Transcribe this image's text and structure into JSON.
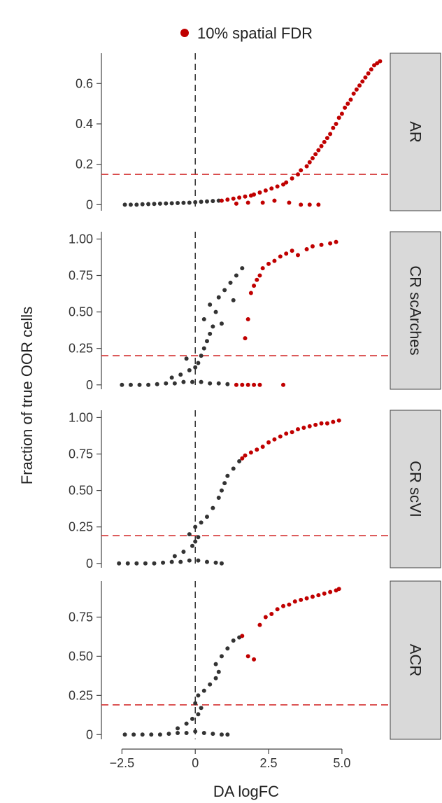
{
  "colors": {
    "significant": "#c00000",
    "nonsignificant": "#333333",
    "fdr_line": "#d32f2f",
    "strip_fill": "#d9d9d9"
  },
  "legend": {
    "label": "10% spatial FDR"
  },
  "chart_data": {
    "type": "scatter",
    "xlabel": "DA logFC",
    "ylabel": "Fraction of true OOR cells",
    "xlim": [
      -3.2,
      6.6
    ],
    "x_ticks": [
      -2.5,
      0,
      2.5,
      5.0
    ],
    "x_tick_labels": [
      "−2.5",
      "0",
      "2.5",
      "5.0"
    ],
    "panels": [
      {
        "strip": "AR",
        "ylim": [
          -0.03,
          0.75
        ],
        "y_ticks": [
          0,
          0.2,
          0.4,
          0.6
        ],
        "y_tick_labels": [
          "0",
          "0.2",
          "0.4",
          "0.6"
        ],
        "threshold": 0.15,
        "points": [
          [
            -2.4,
            0,
            0
          ],
          [
            -2.2,
            0,
            0
          ],
          [
            -2.0,
            0,
            0
          ],
          [
            -1.8,
            0.002,
            0
          ],
          [
            -1.6,
            0.003,
            0
          ],
          [
            -1.4,
            0.004,
            0
          ],
          [
            -1.2,
            0.005,
            0
          ],
          [
            -1.0,
            0.006,
            0
          ],
          [
            -0.8,
            0.007,
            0
          ],
          [
            -0.6,
            0.008,
            0
          ],
          [
            -0.4,
            0.009,
            0
          ],
          [
            -0.2,
            0.01,
            0
          ],
          [
            0.0,
            0.012,
            0
          ],
          [
            0.2,
            0.014,
            0
          ],
          [
            0.4,
            0.016,
            0
          ],
          [
            0.6,
            0.018,
            0
          ],
          [
            0.8,
            0.02,
            0
          ],
          [
            0.9,
            0.02,
            1
          ],
          [
            1.1,
            0.025,
            1
          ],
          [
            1.3,
            0.03,
            1
          ],
          [
            1.5,
            0.035,
            1
          ],
          [
            1.7,
            0.04,
            1
          ],
          [
            1.9,
            0.045,
            1
          ],
          [
            2.0,
            0.05,
            1
          ],
          [
            2.2,
            0.06,
            1
          ],
          [
            2.4,
            0.07,
            1
          ],
          [
            2.6,
            0.08,
            1
          ],
          [
            2.8,
            0.09,
            1
          ],
          [
            3.0,
            0.1,
            1
          ],
          [
            1.4,
            0.005,
            1
          ],
          [
            1.8,
            0.01,
            1
          ],
          [
            2.3,
            0.01,
            1
          ],
          [
            2.7,
            0.02,
            1
          ],
          [
            3.2,
            0.01,
            1
          ],
          [
            3.6,
            0.0,
            1
          ],
          [
            3.9,
            0.0,
            1
          ],
          [
            4.2,
            0.0,
            1
          ],
          [
            3.1,
            0.11,
            1
          ],
          [
            3.3,
            0.13,
            1
          ],
          [
            3.5,
            0.15,
            1
          ],
          [
            3.6,
            0.17,
            1
          ],
          [
            3.8,
            0.19,
            1
          ],
          [
            3.9,
            0.21,
            1
          ],
          [
            4.0,
            0.23,
            1
          ],
          [
            4.1,
            0.25,
            1
          ],
          [
            4.2,
            0.27,
            1
          ],
          [
            4.3,
            0.29,
            1
          ],
          [
            4.4,
            0.31,
            1
          ],
          [
            4.5,
            0.33,
            1
          ],
          [
            4.6,
            0.35,
            1
          ],
          [
            4.7,
            0.38,
            1
          ],
          [
            4.8,
            0.4,
            1
          ],
          [
            4.9,
            0.43,
            1
          ],
          [
            5.0,
            0.45,
            1
          ],
          [
            5.1,
            0.48,
            1
          ],
          [
            5.2,
            0.5,
            1
          ],
          [
            5.3,
            0.52,
            1
          ],
          [
            5.4,
            0.55,
            1
          ],
          [
            5.5,
            0.57,
            1
          ],
          [
            5.6,
            0.59,
            1
          ],
          [
            5.7,
            0.61,
            1
          ],
          [
            5.8,
            0.63,
            1
          ],
          [
            5.9,
            0.65,
            1
          ],
          [
            6.0,
            0.67,
            1
          ],
          [
            6.1,
            0.69,
            1
          ],
          [
            6.2,
            0.7,
            1
          ],
          [
            6.3,
            0.71,
            1
          ]
        ]
      },
      {
        "strip": "CR scArches",
        "ylim": [
          -0.03,
          1.05
        ],
        "y_ticks": [
          0,
          0.25,
          0.5,
          0.75,
          1.0
        ],
        "y_tick_labels": [
          "0",
          "0.25",
          "0.50",
          "0.75",
          "1.00"
        ],
        "threshold": 0.2,
        "points": [
          [
            -2.5,
            0,
            0
          ],
          [
            -2.2,
            0,
            0
          ],
          [
            -1.9,
            0,
            0
          ],
          [
            -1.6,
            0,
            0
          ],
          [
            -1.3,
            0.005,
            0
          ],
          [
            -1.0,
            0.01,
            0
          ],
          [
            -0.7,
            0.01,
            0
          ],
          [
            -0.4,
            0.02,
            0
          ],
          [
            -0.1,
            0.02,
            0
          ],
          [
            0.2,
            0.02,
            0
          ],
          [
            0.5,
            0.01,
            0
          ],
          [
            0.8,
            0.01,
            0
          ],
          [
            1.1,
            0.005,
            0
          ],
          [
            -0.8,
            0.05,
            0
          ],
          [
            -0.5,
            0.07,
            0
          ],
          [
            -0.2,
            0.1,
            0
          ],
          [
            0.0,
            0.12,
            0
          ],
          [
            0.1,
            0.15,
            0
          ],
          [
            0.2,
            0.2,
            0
          ],
          [
            0.3,
            0.25,
            0
          ],
          [
            -0.3,
            0.18,
            0
          ],
          [
            0.4,
            0.3,
            0
          ],
          [
            0.5,
            0.35,
            0
          ],
          [
            0.6,
            0.4,
            0
          ],
          [
            0.3,
            0.45,
            0
          ],
          [
            0.7,
            0.5,
            0
          ],
          [
            0.5,
            0.55,
            0
          ],
          [
            0.8,
            0.6,
            0
          ],
          [
            1.0,
            0.65,
            0
          ],
          [
            1.2,
            0.7,
            0
          ],
          [
            1.4,
            0.75,
            0
          ],
          [
            1.6,
            0.8,
            0
          ],
          [
            1.3,
            0.58,
            0
          ],
          [
            0.9,
            0.42,
            0
          ],
          [
            1.4,
            0.0,
            1
          ],
          [
            1.6,
            0.0,
            1
          ],
          [
            1.8,
            0.0,
            1
          ],
          [
            2.0,
            0.0,
            1
          ],
          [
            2.2,
            0.0,
            1
          ],
          [
            3.0,
            0.0,
            1
          ],
          [
            1.7,
            0.32,
            1
          ],
          [
            1.8,
            0.45,
            1
          ],
          [
            1.9,
            0.63,
            1
          ],
          [
            2.0,
            0.68,
            1
          ],
          [
            2.1,
            0.72,
            1
          ],
          [
            2.2,
            0.75,
            1
          ],
          [
            2.3,
            0.8,
            1
          ],
          [
            2.5,
            0.83,
            1
          ],
          [
            2.7,
            0.85,
            1
          ],
          [
            2.9,
            0.88,
            1
          ],
          [
            3.1,
            0.9,
            1
          ],
          [
            3.3,
            0.92,
            1
          ],
          [
            3.5,
            0.89,
            1
          ],
          [
            3.8,
            0.93,
            1
          ],
          [
            4.0,
            0.95,
            1
          ],
          [
            4.3,
            0.96,
            1
          ],
          [
            4.6,
            0.97,
            1
          ],
          [
            4.8,
            0.98,
            1
          ]
        ]
      },
      {
        "strip": "CR scVI",
        "ylim": [
          -0.03,
          1.05
        ],
        "y_ticks": [
          0,
          0.25,
          0.5,
          0.75,
          1.0
        ],
        "y_tick_labels": [
          "0",
          "0.25",
          "0.50",
          "0.75",
          "1.00"
        ],
        "threshold": 0.19,
        "points": [
          [
            -2.6,
            0,
            0
          ],
          [
            -2.3,
            0,
            0
          ],
          [
            -2.0,
            0,
            0
          ],
          [
            -1.7,
            0,
            0
          ],
          [
            -1.4,
            0,
            0
          ],
          [
            -1.1,
            0.005,
            0
          ],
          [
            -0.8,
            0.01,
            0
          ],
          [
            -0.5,
            0.01,
            0
          ],
          [
            -0.2,
            0.02,
            0
          ],
          [
            0.1,
            0.02,
            0
          ],
          [
            0.4,
            0.01,
            0
          ],
          [
            0.7,
            0.005,
            0
          ],
          [
            0.9,
            0.0,
            0
          ],
          [
            -0.7,
            0.05,
            0
          ],
          [
            -0.4,
            0.08,
            0
          ],
          [
            -0.1,
            0.12,
            0
          ],
          [
            0.0,
            0.15,
            0
          ],
          [
            0.1,
            0.18,
            0
          ],
          [
            -0.2,
            0.2,
            0
          ],
          [
            0.0,
            0.25,
            0
          ],
          [
            0.2,
            0.28,
            0
          ],
          [
            0.4,
            0.32,
            0
          ],
          [
            0.6,
            0.38,
            0
          ],
          [
            0.8,
            0.45,
            0
          ],
          [
            0.9,
            0.5,
            0
          ],
          [
            1.0,
            0.55,
            0
          ],
          [
            1.1,
            0.6,
            0
          ],
          [
            1.3,
            0.65,
            0
          ],
          [
            1.5,
            0.7,
            0
          ],
          [
            1.6,
            0.72,
            1
          ],
          [
            1.7,
            0.74,
            1
          ],
          [
            1.9,
            0.76,
            1
          ],
          [
            2.1,
            0.78,
            1
          ],
          [
            2.3,
            0.8,
            1
          ],
          [
            2.5,
            0.83,
            1
          ],
          [
            2.7,
            0.85,
            1
          ],
          [
            2.9,
            0.87,
            1
          ],
          [
            3.1,
            0.89,
            1
          ],
          [
            3.3,
            0.9,
            1
          ],
          [
            3.5,
            0.92,
            1
          ],
          [
            3.7,
            0.93,
            1
          ],
          [
            3.9,
            0.94,
            1
          ],
          [
            4.1,
            0.95,
            1
          ],
          [
            4.3,
            0.96,
            1
          ],
          [
            4.5,
            0.96,
            1
          ],
          [
            4.7,
            0.97,
            1
          ],
          [
            4.9,
            0.98,
            1
          ]
        ]
      },
      {
        "strip": "ACR",
        "ylim": [
          -0.03,
          0.98
        ],
        "y_ticks": [
          0,
          0.25,
          0.5,
          0.75
        ],
        "y_tick_labels": [
          "0",
          "0.25",
          "0.50",
          "0.75"
        ],
        "threshold": 0.19,
        "points": [
          [
            -2.4,
            0,
            0
          ],
          [
            -2.1,
            0,
            0
          ],
          [
            -1.8,
            0,
            0
          ],
          [
            -1.5,
            0,
            0
          ],
          [
            -1.2,
            0,
            0
          ],
          [
            -0.9,
            0.005,
            0
          ],
          [
            -0.6,
            0.01,
            0
          ],
          [
            -0.3,
            0.01,
            0
          ],
          [
            0.0,
            0.02,
            0
          ],
          [
            0.3,
            0.01,
            0
          ],
          [
            0.6,
            0.005,
            0
          ],
          [
            0.9,
            0.0,
            0
          ],
          [
            1.1,
            0.0,
            0
          ],
          [
            -0.6,
            0.04,
            0
          ],
          [
            -0.3,
            0.07,
            0
          ],
          [
            -0.1,
            0.1,
            0
          ],
          [
            0.1,
            0.13,
            0
          ],
          [
            0.2,
            0.17,
            0
          ],
          [
            0.0,
            0.2,
            0
          ],
          [
            0.1,
            0.25,
            0
          ],
          [
            0.3,
            0.28,
            0
          ],
          [
            0.5,
            0.32,
            0
          ],
          [
            0.7,
            0.36,
            0
          ],
          [
            0.8,
            0.4,
            0
          ],
          [
            0.7,
            0.45,
            0
          ],
          [
            0.9,
            0.5,
            0
          ],
          [
            1.1,
            0.55,
            0
          ],
          [
            1.3,
            0.6,
            0
          ],
          [
            1.5,
            0.62,
            0
          ],
          [
            1.6,
            0.63,
            1
          ],
          [
            1.8,
            0.5,
            1
          ],
          [
            2.0,
            0.48,
            1
          ],
          [
            2.2,
            0.7,
            1
          ],
          [
            2.4,
            0.75,
            1
          ],
          [
            2.6,
            0.77,
            1
          ],
          [
            2.8,
            0.8,
            1
          ],
          [
            3.0,
            0.82,
            1
          ],
          [
            3.2,
            0.83,
            1
          ],
          [
            3.4,
            0.85,
            1
          ],
          [
            3.6,
            0.86,
            1
          ],
          [
            3.8,
            0.87,
            1
          ],
          [
            4.0,
            0.88,
            1
          ],
          [
            4.2,
            0.89,
            1
          ],
          [
            4.4,
            0.9,
            1
          ],
          [
            4.6,
            0.91,
            1
          ],
          [
            4.8,
            0.92,
            1
          ],
          [
            4.9,
            0.93,
            1
          ]
        ]
      }
    ]
  }
}
